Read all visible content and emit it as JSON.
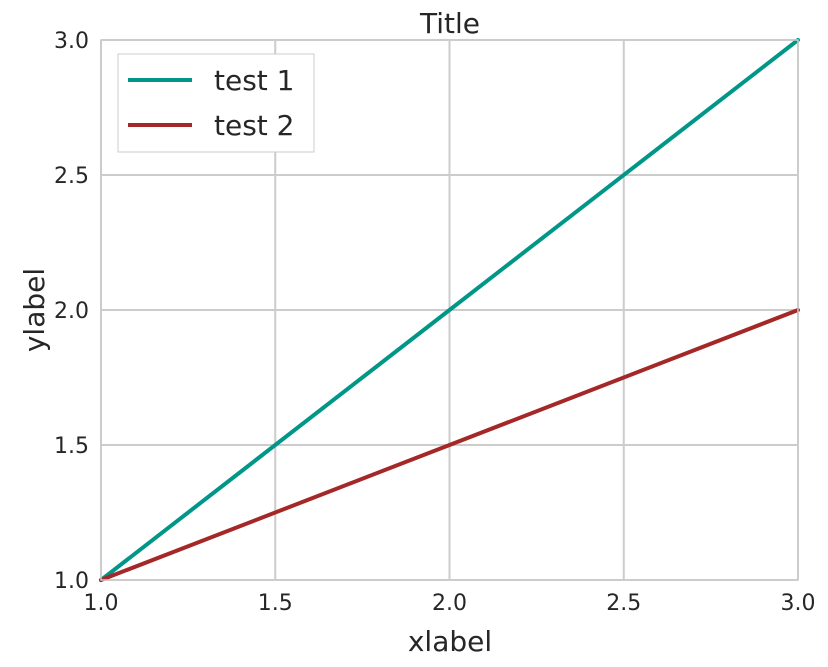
{
  "chart_data": {
    "type": "line",
    "title": "Title",
    "xlabel": "xlabel",
    "ylabel": "ylabel",
    "xlim": [
      1.0,
      3.0
    ],
    "ylim": [
      1.0,
      3.0
    ],
    "x_ticks": [
      "1.0",
      "1.5",
      "2.0",
      "2.5",
      "3.0"
    ],
    "y_ticks": [
      "1.0",
      "1.5",
      "2.0",
      "2.5",
      "3.0"
    ],
    "grid": true,
    "legend_position": "top-left",
    "series": [
      {
        "name": "test 1",
        "color": "#009688",
        "x": [
          1.0,
          2.0,
          3.0
        ],
        "y": [
          1.0,
          2.0,
          3.0
        ]
      },
      {
        "name": "test 2",
        "color": "#A52828",
        "x": [
          1.0,
          2.0,
          3.0
        ],
        "y": [
          1.0,
          1.5,
          2.0
        ]
      }
    ]
  }
}
